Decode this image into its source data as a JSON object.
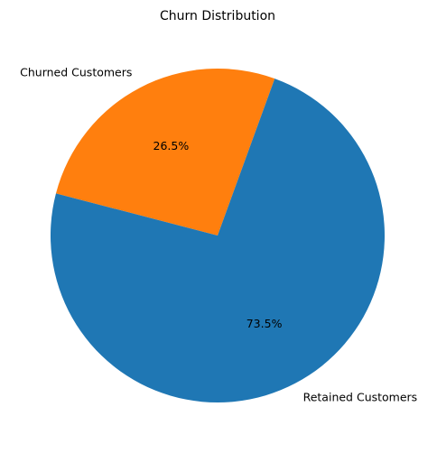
{
  "chart_data": {
    "type": "pie",
    "title": "Churn Distribution",
    "categories": [
      "Churned Customers",
      "Retained Customers"
    ],
    "values": [
      26.5,
      73.5
    ],
    "percent_labels": [
      "26.5%",
      "73.5%"
    ],
    "colors": [
      "#ff7f0e",
      "#1f77b4"
    ],
    "start_angle_deg": 70,
    "direction": "counterclockwise",
    "legend": "none"
  }
}
